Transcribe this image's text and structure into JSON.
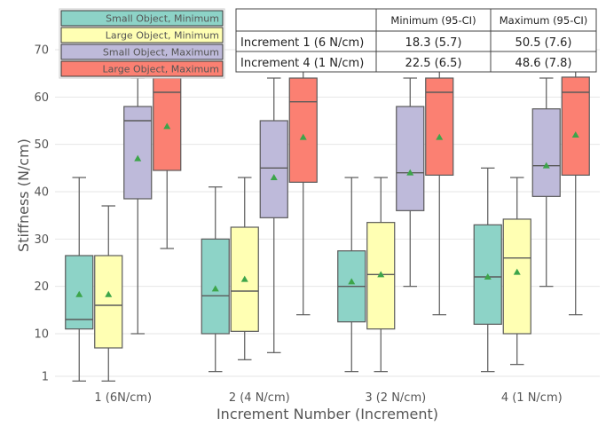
{
  "chart_data": {
    "type": "box",
    "xlabel": "Increment Number (Increment)",
    "ylabel": "Stiffness (N/cm)",
    "categories": [
      "1 (6N/cm)",
      "2 (4 N/cm)",
      "3 (2 N/cm)",
      "4 (1 N/cm)"
    ],
    "yticks": [
      1,
      10,
      20,
      30,
      40,
      50,
      60,
      70
    ],
    "ylim": [
      -0.5,
      79
    ],
    "grid": true,
    "legend_position": "top-left",
    "series": [
      {
        "name": "Small Object, Minimum",
        "color": "#8dd3c7",
        "boxes": [
          {
            "min": 0,
            "q1": 11,
            "median": 13,
            "q3": 26.5,
            "max": 43,
            "mean": 18.3
          },
          {
            "min": 2,
            "q1": 10,
            "median": 18,
            "q3": 30,
            "max": 41,
            "mean": 19.5
          },
          {
            "min": 2,
            "q1": 12.5,
            "median": 20,
            "q3": 27.5,
            "max": 43,
            "mean": 21
          },
          {
            "min": 2,
            "q1": 12,
            "median": 22,
            "q3": 33,
            "max": 45,
            "mean": 22
          }
        ]
      },
      {
        "name": "Large Object, Minimum",
        "color": "#ffffb3",
        "boxes": [
          {
            "min": 0,
            "q1": 7,
            "median": 16,
            "q3": 26.5,
            "max": 37,
            "mean": 18.3
          },
          {
            "min": 4.5,
            "q1": 10.5,
            "median": 19,
            "q3": 32.5,
            "max": 43,
            "mean": 21.5
          },
          {
            "min": 2,
            "q1": 11,
            "median": 22.5,
            "q3": 33.5,
            "max": 43,
            "mean": 22.5
          },
          {
            "min": 3.5,
            "q1": 10,
            "median": 26,
            "q3": 34.2,
            "max": 43,
            "mean": 23
          }
        ]
      },
      {
        "name": "Small Object, Maximum",
        "color": "#bebada",
        "boxes": [
          {
            "min": 10,
            "q1": 38.5,
            "median": 55,
            "q3": 58,
            "max": 64,
            "mean": 47
          },
          {
            "min": 6,
            "q1": 34.5,
            "median": 45,
            "q3": 55,
            "max": 64,
            "mean": 43
          },
          {
            "min": 20,
            "q1": 36,
            "median": 44,
            "q3": 58,
            "max": 64,
            "mean": 44
          },
          {
            "min": 20,
            "q1": 39,
            "median": 45.5,
            "q3": 57.5,
            "max": 64,
            "mean": 45.5
          }
        ]
      },
      {
        "name": "Large Object, Maximum",
        "color": "#fb8072",
        "boxes": [
          {
            "min": 28,
            "q1": 44.5,
            "median": 61,
            "q3": 64,
            "max": 70,
            "mean": 53.8
          },
          {
            "min": 14,
            "q1": 42,
            "median": 59,
            "q3": 64,
            "max": 70,
            "mean": 51.5
          },
          {
            "min": 14,
            "q1": 43.5,
            "median": 61,
            "q3": 64,
            "max": 70,
            "mean": 51.5
          },
          {
            "min": 14,
            "q1": 43.5,
            "median": 61,
            "q3": 64.2,
            "max": 70,
            "mean": 52
          }
        ]
      }
    ],
    "table": {
      "columns": [
        "",
        "Minimum (95-CI)",
        "Maximum (95-CI)"
      ],
      "rows": [
        [
          "Increment 1 (6 N/cm)",
          "18.3 (5.7)",
          "50.5 (7.6)"
        ],
        [
          "Increment 4 (1 N/cm)",
          "22.5 (6.5)",
          "48.6 (7.8)"
        ]
      ]
    }
  }
}
